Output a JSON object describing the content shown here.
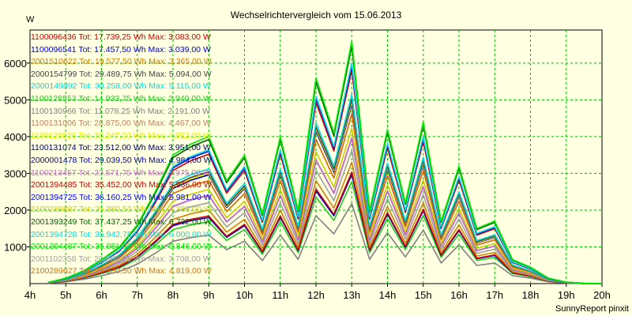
{
  "chart_data": {
    "type": "line",
    "title": "Wechselrichtervergleich vom 15.06.2013",
    "ylabel": "W",
    "footer": "SunnyReport pinxit",
    "x_ticks": [
      "4h",
      "5h",
      "6h",
      "7h",
      "8h",
      "9h",
      "10h",
      "11h",
      "12h",
      "13h",
      "14h",
      "15h",
      "16h",
      "17h",
      "18h",
      "19h",
      "20h"
    ],
    "y_ticks": [
      1000,
      2000,
      3000,
      4000,
      5000,
      6000
    ],
    "xlim": [
      4,
      20
    ],
    "ylim": [
      0,
      6900
    ],
    "grid": true,
    "legend_position": "top-left",
    "x": [
      4.5,
      5,
      5.5,
      6,
      6.5,
      7,
      7.5,
      8,
      8.5,
      9,
      9.5,
      10,
      10.5,
      11,
      11.5,
      12,
      12.5,
      13,
      13.5,
      14,
      14.5,
      15,
      15.5,
      16,
      16.5,
      17,
      17.5,
      18,
      18.5,
      19,
      19.5,
      20
    ],
    "base_profile": [
      30,
      150,
      350,
      650,
      1000,
      1600,
      2500,
      3500,
      3800,
      4000,
      2800,
      3500,
      1900,
      4000,
      2000,
      5600,
      4100,
      6600,
      2000,
      4200,
      2200,
      4400,
      1700,
      3200,
      1500,
      1700,
      650,
      450,
      150,
      40,
      8,
      0
    ],
    "series": [
      {
        "legend": "1100096436 Tot: 17.739,25 Wh Max: 3.083,00 W",
        "color": "#cc0000",
        "scale": 0.46
      },
      {
        "legend": "1100096541 Tot: 17.457,50 Wh Max: 3.039,00 W",
        "color": "#0000cc",
        "scale": 0.45
      },
      {
        "legend": "2001510622 Tot: 19.577,50 Wh Max: 3.365,00 W",
        "color": "#d08000",
        "scale": 0.5
      },
      {
        "legend": "2000154799 Tot: 29.489,75 Wh Max: 5.094,00 W",
        "color": "#444444",
        "scale": 0.76
      },
      {
        "legend": "2000149892 Tot: 30.258,00 Wh Max: 5.115,00 W",
        "color": "#00dddd",
        "scale": 0.78
      },
      {
        "legend": "1100128553 Tot: 14.933,75 Wh Max: 2.940,00 W",
        "color": "#22cc22",
        "scale": 0.42
      },
      {
        "legend": "1100130966 Tot: 11.078,25 Wh Max: 2.191,00 W",
        "color": "#808080",
        "scale": 0.33
      },
      {
        "legend": "1100131006 Tot: 28.875,00 Wh Max: 4.467,00 W",
        "color": "#c08060",
        "scale": 0.7
      },
      {
        "legend": "1100120826 Tot: 30.247,00 Wh Max: 4.952,00 W",
        "color": "#eeee00",
        "scale": 0.75
      },
      {
        "legend": "1100131074 Tot: 23.512,00 Wh Max: 3.951,00 W",
        "color": "#000066",
        "scale": 0.6
      },
      {
        "legend": "2000001478 Tot: 29.039,50 Wh Max: 4.984,00 W",
        "color": "#0000aa",
        "scale": 0.74
      },
      {
        "legend": "1100213457 Tot: 23.571,75 Wh Max: 3.975,00 W",
        "color": "#cc66cc",
        "scale": 0.6
      },
      {
        "legend": "2001394485 Tot: 35.452,00 Wh Max: 5.936,00 W",
        "color": "#cc0000",
        "scale": 0.88
      },
      {
        "legend": "2001394725 Tot: 36.160,25 Wh Max: 5.981,00 W",
        "color": "#0000ff",
        "scale": 0.9
      },
      {
        "legend": "2100289887 Tot: 25.380,50 Wh Max: 4.385,00 W",
        "color": "#cccc00",
        "scale": 0.64
      },
      {
        "legend": "2001393249 Tot: 37.437,25 Wh Max: 6.732,00 W",
        "color": "#006600",
        "scale": 0.98
      },
      {
        "legend": "2001394728 Tot: 35.942,75 Wh Max: 6.000,00 W",
        "color": "#00e0e0",
        "scale": 0.91
      },
      {
        "legend": "2001394487 Tot: 36.981,00 Wh Max: 6.846,00 W",
        "color": "#00ee00",
        "scale": 1.0
      },
      {
        "legend": "2001102358 Tot: 20.860,25 Wh Max: 3.708,00 W",
        "color": "#a0a0a0",
        "scale": 0.55
      },
      {
        "legend": "2100289627 Tot: 27.530,50 Wh Max: 4.819,00 W",
        "color": "#e07000",
        "scale": 0.7
      }
    ]
  }
}
